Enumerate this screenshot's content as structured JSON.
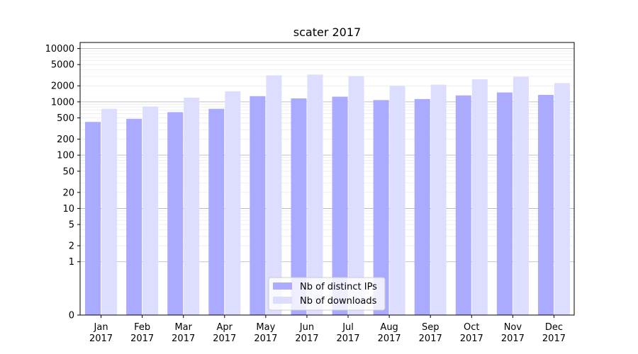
{
  "chart_data": {
    "type": "bar",
    "title": "scater 2017",
    "xlabel": "",
    "ylabel": "",
    "yscale": "symlog",
    "ylim": [
      0,
      13000
    ],
    "yticks": [
      0,
      1,
      2,
      5,
      10,
      20,
      50,
      100,
      200,
      500,
      1000,
      2000,
      5000,
      10000
    ],
    "grid": true,
    "legend_position": "lower center",
    "categories": [
      [
        "Jan",
        "2017"
      ],
      [
        "Feb",
        "2017"
      ],
      [
        "Mar",
        "2017"
      ],
      [
        "Apr",
        "2017"
      ],
      [
        "May",
        "2017"
      ],
      [
        "Jun",
        "2017"
      ],
      [
        "Jul",
        "2017"
      ],
      [
        "Aug",
        "2017"
      ],
      [
        "Sep",
        "2017"
      ],
      [
        "Oct",
        "2017"
      ],
      [
        "Nov",
        "2017"
      ],
      [
        "Dec",
        "2017"
      ]
    ],
    "series": [
      {
        "name": "Nb of distinct IPs",
        "color": "#aaaaff",
        "values": [
          420,
          480,
          640,
          740,
          1280,
          1160,
          1250,
          1080,
          1130,
          1320,
          1500,
          1350
        ]
      },
      {
        "name": "Nb of downloads",
        "color": "#ddddff",
        "values": [
          740,
          820,
          1200,
          1580,
          3150,
          3250,
          3050,
          2000,
          2100,
          2650,
          2950,
          2250
        ]
      }
    ]
  }
}
